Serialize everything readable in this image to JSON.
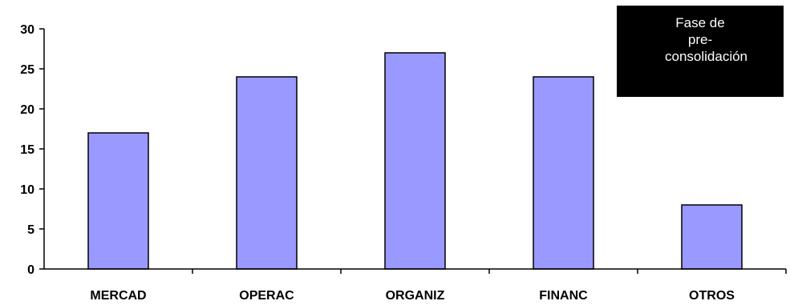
{
  "chart_data": {
    "type": "bar",
    "categories": [
      "MERCAD",
      "OPERAC",
      "ORGANIZ",
      "FINANC",
      "OTROS"
    ],
    "values": [
      17,
      24,
      27,
      24,
      8
    ],
    "ylim": [
      0,
      30
    ],
    "yticks": [
      "0",
      "5",
      "10",
      "15",
      "20",
      "25",
      "30"
    ],
    "grid": false,
    "legend": {
      "label": "Fase de pre-consolidación",
      "placement": "top-right"
    },
    "bar_color": "#9999ff",
    "bar_edge_color": "#000000"
  }
}
